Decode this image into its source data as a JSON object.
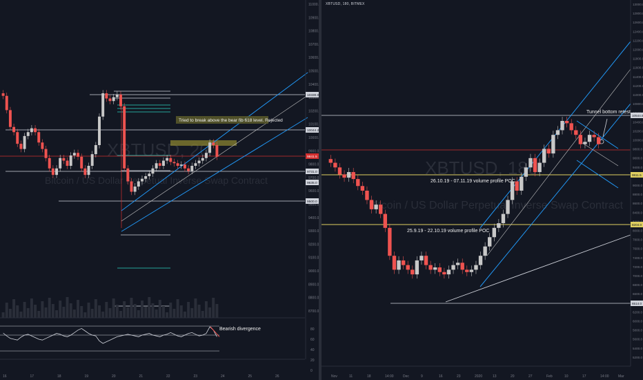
{
  "colors": {
    "background": "#131722",
    "candle_up": "#c8c8c8",
    "candle_down": "#ef5350",
    "channel_blue": "#2196f3",
    "channel_white": "#c8c8c8",
    "poc_yellow": "#e0d060",
    "price_level_red": "#d32f2f",
    "fib_green": "#26a69a"
  },
  "left_panel": {
    "watermark": {
      "symbol": "XBTUSD, 20",
      "subtitle": "Bitcoin / US Dollar Perpetual Inverse Swap Contract"
    },
    "annotations": {
      "rejected": "Tried to break above the bear fib 618 level. Rejected",
      "divergence": "Bearish divergence"
    },
    "price_axis_labels": [
      "11000.0",
      "10900.0",
      "10800.0",
      "10700.0",
      "10600.0",
      "10500.0",
      "10400.0",
      "10300.0",
      "10200.0",
      "10100.0",
      "10000.0",
      "9900.0",
      "9800.0",
      "9700.0",
      "9600.0",
      "9500.0",
      "9400.0",
      "9300.0",
      "9200.0",
      "9100.0",
      "9000.0",
      "8900.0",
      "8800.0",
      "8700.0"
    ],
    "highlighted_prices": [
      "10330.0",
      "10044.2",
      "9841.5",
      "9731.0",
      "9635.0",
      "9500.0"
    ],
    "time_axis_labels": [
      "16",
      "17",
      "18",
      "19",
      "20",
      "21",
      "22",
      "23",
      "24",
      "25",
      "26"
    ],
    "rsi_axis_labels": [
      "80",
      "60",
      "40",
      "20",
      "0"
    ]
  },
  "right_panel": {
    "header": "XBTUSD, 180, BITMEX",
    "watermark": {
      "symbol": "XBTUSD, 180",
      "subtitle": "Bitcoin / US Dollar Perpetual Inverse Swap Contract"
    },
    "annotations": {
      "tunnel": "Tunnel bottom retest",
      "poc1": "26.10.19 - 07.11.19 volume profile POC",
      "poc2": "25.9.19 - 22.10.19 volume profile POC"
    },
    "price_axis_labels": [
      "13000.0",
      "12800.0",
      "12600.0",
      "12400.0",
      "12200.0",
      "12000.0",
      "11800.0",
      "11600.0",
      "11400.0",
      "11200.0",
      "11000.0",
      "10800.0",
      "10600.0",
      "10400.0",
      "10200.0",
      "10000.0",
      "9800.0",
      "9600.0",
      "9400.0",
      "9200.0",
      "9000.0",
      "8800.0",
      "8600.0",
      "8400.0",
      "8200.0",
      "8000.0",
      "7800.0",
      "7600.0",
      "7400.0",
      "7200.0",
      "7000.0",
      "6800.0",
      "6600.0",
      "6400.0",
      "6200.0",
      "6000.0",
      "5800.0",
      "5600.0",
      "5400.0",
      "5200.0"
    ],
    "highlighted_prices": [
      "10544.5",
      "9811.5",
      "8204.0",
      "6514.0"
    ],
    "time_axis_labels": [
      "Nov",
      "11",
      "18",
      "14:00",
      "Dec",
      "9",
      "16",
      "23",
      "2020",
      "13",
      "20",
      "27",
      "Feb",
      "10",
      "17",
      "14:00",
      "Mar"
    ]
  },
  "chart_data": [
    {
      "type": "candlestick",
      "title": "XBTUSD, 20",
      "yrange": [
        8600,
        11000
      ],
      "xrange_label": "16 - 26",
      "closes": [
        10260,
        10150,
        10020,
        9980,
        9890,
        9850,
        9950,
        9980,
        10010,
        9980,
        9900,
        9850,
        9780,
        9700,
        9650,
        9700,
        9780,
        9760,
        9720,
        9800,
        9820,
        9790,
        9700,
        9650,
        9720,
        9810,
        9880,
        10100,
        10280,
        10240,
        10220,
        10250,
        10270,
        10180,
        9700,
        9600,
        9520,
        9560,
        9600,
        9620,
        9640,
        9660,
        9700,
        9740,
        9720,
        9760,
        9780,
        9750,
        9740,
        9720,
        9730,
        9700,
        9680,
        9720,
        9740,
        9760,
        9780,
        9820,
        9900,
        9880,
        9790
      ],
      "rsi": [
        55,
        48,
        42,
        40,
        38,
        45,
        50,
        52,
        48,
        44,
        40,
        38,
        42,
        46,
        50,
        54,
        52,
        48,
        46,
        50,
        56,
        62,
        66,
        60,
        54,
        50,
        48,
        36,
        30,
        34,
        38,
        42,
        46,
        48,
        50,
        52,
        50,
        48,
        46,
        50,
        52,
        54,
        50,
        48,
        46,
        50,
        52,
        56,
        52,
        48,
        46,
        50,
        54,
        56,
        52,
        48,
        50,
        54,
        70,
        62,
        46
      ],
      "levels": {
        "rejection_fib": 9841.5,
        "resistance": 10044.2,
        "support": 9731.0,
        "low_line": 9500.0,
        "high_line": 10330.0
      }
    },
    {
      "type": "candlestick",
      "title": "XBTUSD, 180",
      "yrange": [
        5200,
        13000
      ],
      "closes": [
        9500,
        9400,
        9250,
        9180,
        9300,
        9150,
        9000,
        8900,
        8700,
        8500,
        8600,
        8400,
        8100,
        7500,
        7200,
        7400,
        7300,
        7200,
        7100,
        7400,
        7500,
        7300,
        7200,
        7250,
        7150,
        7100,
        7200,
        7300,
        7350,
        7200,
        7150,
        7200,
        7300,
        7500,
        7700,
        7900,
        8100,
        8200,
        8400,
        8700,
        9100,
        8900,
        9200,
        9400,
        9600,
        9300,
        9500,
        9800,
        9700,
        10100,
        10200,
        10400,
        10350,
        10200,
        10100,
        9900,
        9950,
        10100,
        10050,
        9900
      ],
      "levels": {
        "poc_1": 9811.5,
        "poc_2": 8204.0,
        "tunnel_top": 10544.5,
        "low": 6514.0
      }
    }
  ]
}
